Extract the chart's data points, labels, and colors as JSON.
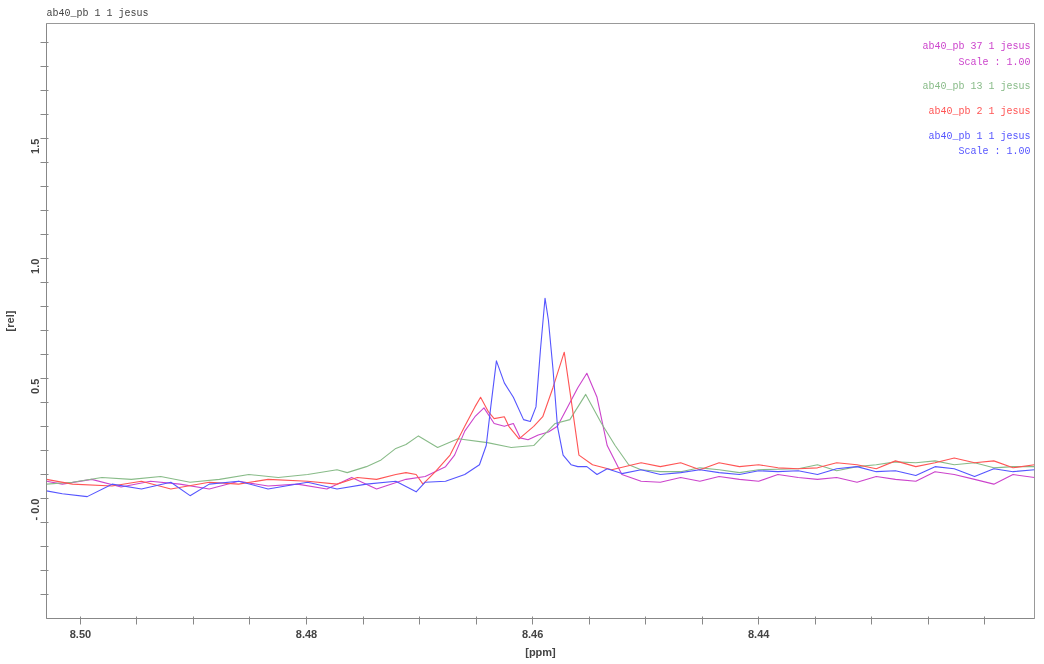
{
  "chart_data": {
    "type": "line",
    "title": "ab40_pb 1 1 jesus",
    "xlabel": "[ppm]",
    "ylabel": "[rel]",
    "xlim": [
      8.503,
      8.4156
    ],
    "ylim": [
      -0.5,
      1.98
    ],
    "xticks": [
      {
        "value": 8.5,
        "label": "8.50"
      },
      {
        "value": 8.495,
        "label": null
      },
      {
        "value": 8.49,
        "label": null
      },
      {
        "value": 8.485,
        "label": null
      },
      {
        "value": 8.48,
        "label": "8.48"
      },
      {
        "value": 8.475,
        "label": null
      },
      {
        "value": 8.47,
        "label": null
      },
      {
        "value": 8.465,
        "label": null
      },
      {
        "value": 8.46,
        "label": "8.46"
      },
      {
        "value": 8.455,
        "label": null
      },
      {
        "value": 8.45,
        "label": null
      },
      {
        "value": 8.445,
        "label": null
      },
      {
        "value": 8.44,
        "label": "8.44"
      },
      {
        "value": 8.435,
        "label": null
      },
      {
        "value": 8.43,
        "label": null
      },
      {
        "value": 8.425,
        "label": null
      },
      {
        "value": 8.42,
        "label": null
      }
    ],
    "yticks": [
      {
        "value": -0.4,
        "label": null
      },
      {
        "value": -0.3,
        "label": null
      },
      {
        "value": -0.2,
        "label": null
      },
      {
        "value": -0.1,
        "label": null
      },
      {
        "value": 0,
        "label": "- 0.0"
      },
      {
        "value": 0.1,
        "label": null
      },
      {
        "value": 0.2,
        "label": null
      },
      {
        "value": 0.3,
        "label": null
      },
      {
        "value": 0.4,
        "label": null
      },
      {
        "value": 0.5,
        "label": "0.5"
      },
      {
        "value": 0.6,
        "label": null
      },
      {
        "value": 0.7,
        "label": null
      },
      {
        "value": 0.8,
        "label": null
      },
      {
        "value": 0.9,
        "label": null
      },
      {
        "value": 1.0,
        "label": "1.0"
      },
      {
        "value": 1.1,
        "label": null
      },
      {
        "value": 1.2,
        "label": null
      },
      {
        "value": 1.3,
        "label": null
      },
      {
        "value": 1.4,
        "label": null
      },
      {
        "value": 1.5,
        "label": "1.5"
      },
      {
        "value": 1.6,
        "label": null
      },
      {
        "value": 1.7,
        "label": null
      },
      {
        "value": 1.8,
        "label": null
      },
      {
        "value": 1.9,
        "label": null
      }
    ],
    "legend": "top right",
    "line_style": "solid",
    "series": [
      {
        "name": "ab40_pb 37 1 jesus\nScale : 1.00",
        "color": "#cc44cc",
        "x": [
          8.503,
          8.5016,
          8.499,
          8.4964,
          8.4938,
          8.4912,
          8.4886,
          8.486,
          8.4834,
          8.4808,
          8.4782,
          8.476,
          8.4738,
          8.4712,
          8.4695,
          8.4677,
          8.4669,
          8.466,
          8.4651,
          8.4643,
          8.4634,
          8.4625,
          8.4617,
          8.4611,
          8.4604,
          8.4595,
          8.4586,
          8.4578,
          8.4569,
          8.456,
          8.4552,
          8.4543,
          8.4534,
          8.4521,
          8.4504,
          8.4487,
          8.4469,
          8.4452,
          8.4435,
          8.4417,
          8.44,
          8.4383,
          8.4365,
          8.4348,
          8.4331,
          8.4313,
          8.4296,
          8.4279,
          8.4261,
          8.4244,
          8.4227,
          8.4209,
          8.4192,
          8.4175,
          8.4156
        ],
        "values": [
          0.072,
          0.06,
          0.08,
          0.048,
          0.072,
          0.06,
          0.04,
          0.072,
          0.052,
          0.06,
          0.04,
          0.088,
          0.04,
          0.08,
          0.092,
          0.133,
          0.181,
          0.281,
          0.341,
          0.378,
          0.313,
          0.301,
          0.313,
          0.253,
          0.245,
          0.265,
          0.277,
          0.301,
          0.382,
          0.462,
          0.522,
          0.422,
          0.221,
          0.1,
          0.072,
          0.068,
          0.088,
          0.072,
          0.092,
          0.08,
          0.072,
          0.1,
          0.088,
          0.08,
          0.088,
          0.068,
          0.092,
          0.08,
          0.072,
          0.112,
          0.1,
          0.08,
          0.06,
          0.1,
          0.088
        ]
      },
      {
        "name": "ab40_pb 13 1 jesus",
        "color": "#88bb88",
        "x": [
          8.503,
          8.5007,
          8.4981,
          8.4955,
          8.4929,
          8.4903,
          8.4877,
          8.4851,
          8.4825,
          8.4799,
          8.4773,
          8.4764,
          8.4747,
          8.4734,
          8.4721,
          8.4712,
          8.4701,
          8.4684,
          8.4666,
          8.464,
          8.4619,
          8.4599,
          8.458,
          8.4567,
          8.4553,
          8.4539,
          8.4527,
          8.4515,
          8.4504,
          8.4487,
          8.4469,
          8.4452,
          8.4435,
          8.4417,
          8.44,
          8.4383,
          8.4365,
          8.4348,
          8.4331,
          8.4313,
          8.4296,
          8.4279,
          8.4261,
          8.4244,
          8.4227,
          8.4209,
          8.4192,
          8.4175,
          8.4156
        ],
        "values": [
          0.06,
          0.068,
          0.088,
          0.08,
          0.092,
          0.068,
          0.08,
          0.1,
          0.088,
          0.1,
          0.12,
          0.108,
          0.133,
          0.161,
          0.209,
          0.225,
          0.261,
          0.213,
          0.249,
          0.233,
          0.213,
          0.221,
          0.313,
          0.329,
          0.434,
          0.313,
          0.221,
          0.141,
          0.12,
          0.112,
          0.112,
          0.128,
          0.12,
          0.108,
          0.12,
          0.122,
          0.124,
          0.141,
          0.116,
          0.133,
          0.141,
          0.153,
          0.149,
          0.157,
          0.141,
          0.149,
          0.128,
          0.133,
          0.133
        ]
      },
      {
        "name": "ab40_pb 2 1 jesus",
        "color": "#ff5555",
        "x": [
          8.503,
          8.5007,
          8.4972,
          8.4946,
          8.492,
          8.4886,
          8.486,
          8.4834,
          8.4799,
          8.4773,
          8.4755,
          8.4738,
          8.4721,
          8.4712,
          8.4703,
          8.4697,
          8.4686,
          8.4673,
          8.466,
          8.4651,
          8.4646,
          8.4639,
          8.4634,
          8.4625,
          8.4621,
          8.4612,
          8.4599,
          8.4591,
          8.4582,
          8.4572,
          8.4565,
          8.4559,
          8.4547,
          8.453,
          8.4504,
          8.4487,
          8.4469,
          8.4452,
          8.4435,
          8.4417,
          8.44,
          8.4383,
          8.4365,
          8.4348,
          8.4331,
          8.4313,
          8.4296,
          8.4279,
          8.4261,
          8.4244,
          8.4227,
          8.4209,
          8.4192,
          8.4175,
          8.4156
        ],
        "values": [
          0.08,
          0.06,
          0.052,
          0.072,
          0.04,
          0.068,
          0.06,
          0.08,
          0.072,
          0.06,
          0.088,
          0.08,
          0.1,
          0.108,
          0.1,
          0.06,
          0.112,
          0.181,
          0.301,
          0.382,
          0.422,
          0.361,
          0.333,
          0.341,
          0.301,
          0.249,
          0.301,
          0.341,
          0.462,
          0.61,
          0.382,
          0.181,
          0.141,
          0.12,
          0.149,
          0.133,
          0.149,
          0.12,
          0.149,
          0.133,
          0.141,
          0.128,
          0.124,
          0.128,
          0.149,
          0.141,
          0.124,
          0.157,
          0.133,
          0.149,
          0.169,
          0.149,
          0.157,
          0.128,
          0.141
        ]
      },
      {
        "name": "ab40_pb 1 1 jesus\nScale : 1.00",
        "color": "#5555ff",
        "x": [
          8.503,
          8.5016,
          8.4994,
          8.4972,
          8.4946,
          8.492,
          8.4903,
          8.4886,
          8.486,
          8.4834,
          8.4799,
          8.4773,
          8.4747,
          8.4721,
          8.4703,
          8.4695,
          8.4677,
          8.466,
          8.4647,
          8.4641,
          8.4637,
          8.4632,
          8.4625,
          8.4617,
          8.4608,
          8.4602,
          8.4597,
          8.4593,
          8.4589,
          8.4586,
          8.4582,
          8.4578,
          8.4573,
          8.4566,
          8.456,
          8.4552,
          8.4543,
          8.4534,
          8.4521,
          8.4504,
          8.4487,
          8.4469,
          8.4452,
          8.4435,
          8.4417,
          8.44,
          8.4383,
          8.4365,
          8.4348,
          8.4331,
          8.4313,
          8.4296,
          8.4279,
          8.4261,
          8.4244,
          8.4227,
          8.4209,
          8.4192,
          8.4175,
          8.4156
        ],
        "values": [
          0.032,
          0.02,
          0.008,
          0.06,
          0.04,
          0.068,
          0.012,
          0.06,
          0.072,
          0.04,
          0.068,
          0.04,
          0.06,
          0.072,
          0.028,
          0.068,
          0.072,
          0.1,
          0.141,
          0.221,
          0.382,
          0.574,
          0.482,
          0.422,
          0.329,
          0.321,
          0.382,
          0.622,
          0.835,
          0.743,
          0.542,
          0.301,
          0.181,
          0.141,
          0.133,
          0.133,
          0.1,
          0.124,
          0.104,
          0.12,
          0.1,
          0.108,
          0.12,
          0.108,
          0.1,
          0.116,
          0.112,
          0.116,
          0.1,
          0.124,
          0.133,
          0.112,
          0.116,
          0.096,
          0.133,
          0.124,
          0.092,
          0.124,
          0.112,
          0.12
        ]
      }
    ]
  }
}
